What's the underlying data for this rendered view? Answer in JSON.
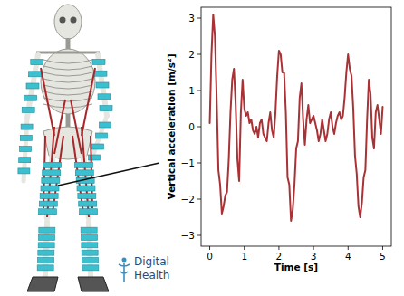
{
  "chart_data": {
    "type": "line",
    "x_label": "Time [s]",
    "y_label": "Vertical acceleration [m/s²]",
    "x": [
      0,
      0.05,
      0.1,
      0.15,
      0.2,
      0.25,
      0.3,
      0.35,
      0.4,
      0.45,
      0.5,
      0.55,
      0.6,
      0.65,
      0.7,
      0.75,
      0.8,
      0.85,
      0.9,
      0.95,
      1,
      1.05,
      1.1,
      1.15,
      1.2,
      1.25,
      1.3,
      1.35,
      1.4,
      1.45,
      1.5,
      1.55,
      1.6,
      1.65,
      1.7,
      1.75,
      1.8,
      1.85,
      1.9,
      1.95,
      2,
      2.05,
      2.1,
      2.15,
      2.2,
      2.25,
      2.3,
      2.35,
      2.4,
      2.45,
      2.5,
      2.55,
      2.6,
      2.65,
      2.7,
      2.75,
      2.8,
      2.85,
      2.9,
      2.95,
      3,
      3.05,
      3.1,
      3.15,
      3.2,
      3.25,
      3.3,
      3.35,
      3.4,
      3.45,
      3.5,
      3.55,
      3.6,
      3.65,
      3.7,
      3.75,
      3.8,
      3.85,
      3.9,
      3.95,
      4,
      4.05,
      4.1,
      4.15,
      4.2,
      4.25,
      4.3,
      4.35,
      4.4,
      4.45,
      4.5,
      4.55,
      4.6,
      4.65,
      4.7,
      4.75,
      4.8,
      4.85,
      4.9,
      4.95,
      5
    ],
    "series": [
      {
        "color": "#a83236",
        "values": [
          0.1,
          2.0,
          3.1,
          2.5,
          0.8,
          -1.2,
          -1.6,
          -2.4,
          -2.2,
          -1.9,
          -1.8,
          -0.9,
          0.4,
          1.3,
          1.6,
          0.6,
          -0.9,
          -1.5,
          0.4,
          1.3,
          0.5,
          0.3,
          0.4,
          0.1,
          0.2,
          -0.1,
          -0.2,
          0.0,
          -0.3,
          0.1,
          0.2,
          -0.2,
          -0.3,
          -0.4,
          0.1,
          0.4,
          -0.1,
          -0.3,
          0.4,
          1.4,
          2.1,
          2.0,
          1.5,
          1.5,
          0.4,
          -1.4,
          -1.6,
          -2.6,
          -2.3,
          -1.6,
          -0.6,
          -0.4,
          0.8,
          1.2,
          0.2,
          -0.5,
          0.2,
          0.6,
          0.1,
          0.2,
          0.3,
          0.1,
          -0.1,
          -0.4,
          -0.2,
          0.2,
          -0.1,
          -0.4,
          -0.2,
          0.2,
          0.4,
          0.0,
          -0.2,
          0.1,
          0.3,
          0.4,
          0.2,
          0.3,
          0.8,
          1.5,
          2.0,
          1.6,
          1.4,
          0.5,
          -0.8,
          -1.3,
          -2.2,
          -2.5,
          -2.1,
          -1.4,
          -1.2,
          0.2,
          1.3,
          0.9,
          -0.3,
          -0.6,
          0.4,
          0.6,
          0.2,
          -0.2,
          0.55
        ]
      }
    ],
    "xlim": [
      -0.25,
      5.25
    ],
    "ylim": [
      -3.3,
      3.3
    ],
    "xticks": [
      0,
      1,
      2,
      3,
      4,
      5
    ],
    "yticks": [
      {
        "value": -3,
        "label": "−3"
      },
      {
        "value": -2,
        "label": "−2"
      },
      {
        "value": -1,
        "label": "−1"
      },
      0,
      1,
      2,
      3
    ],
    "grid": false
  },
  "figure": {
    "logo": [
      "Digital",
      "Health"
    ]
  }
}
